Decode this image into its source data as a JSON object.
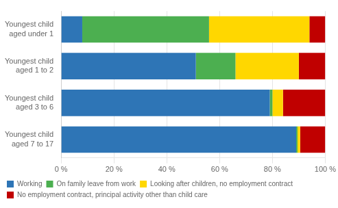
{
  "chart_data": {
    "type": "bar",
    "orientation": "horizontal",
    "stacked": true,
    "categories": [
      "Youngest child\naged under 1",
      "Youngest child\naged 1 to 2",
      "Youngest child\naged 3 to 6",
      "Youngest child\naged 7 to 17"
    ],
    "series": [
      {
        "name": "Working",
        "color": "#2E75B6",
        "values": [
          8,
          51,
          79,
          89
        ]
      },
      {
        "name": "On family leave from work",
        "color": "#4CAF50",
        "values": [
          48,
          15,
          1,
          0.5
        ]
      },
      {
        "name": "Looking after children, no employment contract",
        "color": "#FFD700",
        "values": [
          38,
          24,
          4,
          1
        ]
      },
      {
        "name": "No employment contract, principal activity other than child care",
        "color": "#C00000",
        "values": [
          6,
          10,
          16,
          9.5
        ]
      }
    ],
    "xlim": [
      0,
      100
    ],
    "xticks": [
      {
        "value": 0,
        "label": "0 %"
      },
      {
        "value": 20,
        "label": "20 %"
      },
      {
        "value": 40,
        "label": "40 %"
      },
      {
        "value": 60,
        "label": "60 %"
      },
      {
        "value": 80,
        "label": "80 %"
      },
      {
        "value": 100,
        "label": "100 %"
      }
    ],
    "grid": true,
    "legend": "bottom"
  }
}
